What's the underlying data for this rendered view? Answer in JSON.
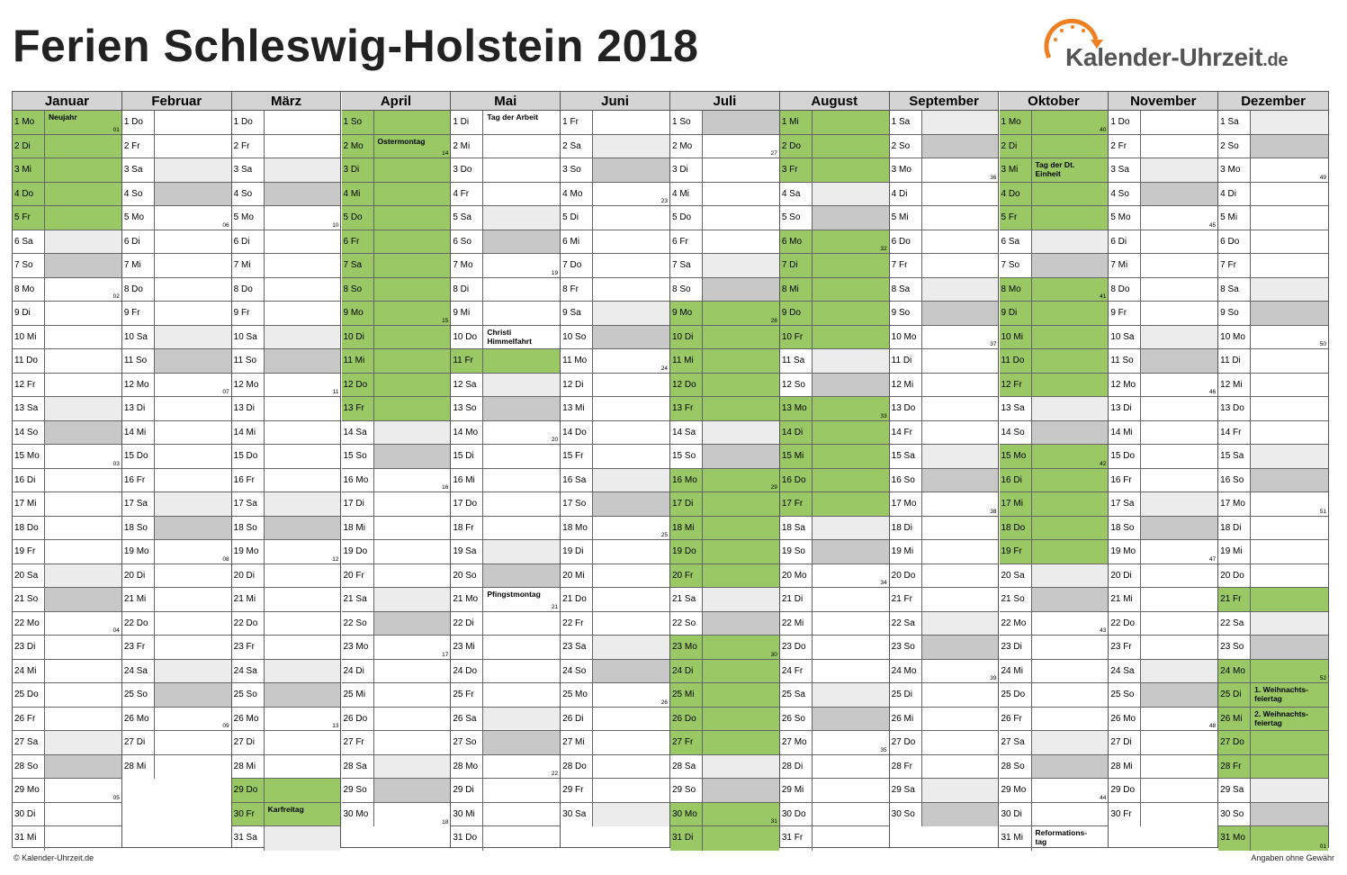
{
  "title": "Ferien Schleswig-Holstein 2018",
  "logo": {
    "text": "Kalender-Uhrzeit",
    "tld": ".de",
    "accent": "#ee7f22"
  },
  "colors": {
    "holiday": "#99c864",
    "saturday": "#ececec",
    "sunday": "#c8c8c8",
    "header": "#d4d4d4"
  },
  "footer": {
    "left": "© Kalender-Uhrzeit.de",
    "right": "Angaben ohne Gewähr"
  },
  "weekdays": [
    "So",
    "Mo",
    "Di",
    "Mi",
    "Do",
    "Fr",
    "Sa"
  ],
  "year_start_weekday": 1,
  "months": [
    {
      "name": "Januar",
      "days": 31,
      "holiday_days": [
        1,
        2,
        3,
        4,
        5
      ],
      "holiday_names": {
        "1": "Neujahr"
      },
      "week_numbers": {
        "1": "01",
        "8": "02",
        "15": "03",
        "22": "04",
        "29": "05"
      }
    },
    {
      "name": "Februar",
      "days": 28,
      "holiday_days": [],
      "holiday_names": {},
      "week_numbers": {
        "5": "06",
        "12": "07",
        "19": "08",
        "26": "09"
      }
    },
    {
      "name": "März",
      "days": 31,
      "holiday_days": [
        29,
        30
      ],
      "holiday_names": {
        "30": "Karfreitag"
      },
      "week_numbers": {
        "5": "10",
        "12": "11",
        "19": "12",
        "26": "13"
      }
    },
    {
      "name": "April",
      "days": 30,
      "holiday_days": [
        1,
        2,
        3,
        4,
        5,
        6,
        7,
        8,
        9,
        10,
        11,
        12,
        13
      ],
      "holiday_names": {
        "2": "Ostermontag"
      },
      "week_numbers": {
        "2": "14",
        "9": "15",
        "16": "16",
        "23": "17",
        "30": "18"
      }
    },
    {
      "name": "Mai",
      "days": 31,
      "holiday_days": [
        11
      ],
      "holiday_names": {
        "1": "Tag der Arbeit",
        "10": "Christi\nHimmelfahrt",
        "21": "Pfingstmontag"
      },
      "week_numbers": {
        "7": "19",
        "14": "20",
        "21": "21",
        "28": "22"
      }
    },
    {
      "name": "Juni",
      "days": 30,
      "holiday_days": [],
      "holiday_names": {},
      "week_numbers": {
        "4": "23",
        "11": "24",
        "18": "25",
        "25": "26"
      }
    },
    {
      "name": "Juli",
      "days": 31,
      "holiday_days": [
        9,
        10,
        11,
        12,
        13,
        16,
        17,
        18,
        19,
        20,
        23,
        24,
        25,
        26,
        27,
        30,
        31
      ],
      "holiday_names": {},
      "week_numbers": {
        "2": "27",
        "9": "28",
        "16": "29",
        "23": "30",
        "30": "31"
      }
    },
    {
      "name": "August",
      "days": 31,
      "holiday_days": [
        1,
        2,
        3,
        6,
        7,
        8,
        9,
        10,
        13,
        14,
        15,
        16,
        17
      ],
      "holiday_names": {},
      "week_numbers": {
        "6": "32",
        "13": "33",
        "20": "34",
        "27": "35"
      }
    },
    {
      "name": "September",
      "days": 30,
      "holiday_days": [],
      "holiday_names": {},
      "week_numbers": {
        "3": "36",
        "10": "37",
        "17": "38",
        "24": "39"
      }
    },
    {
      "name": "Oktober",
      "days": 31,
      "holiday_days": [
        1,
        2,
        3,
        4,
        5,
        8,
        9,
        10,
        11,
        12,
        15,
        16,
        17,
        18,
        19
      ],
      "holiday_names": {
        "3": "Tag der Dt.\nEinheit",
        "31": "Reformations-\ntag"
      },
      "week_numbers": {
        "1": "40",
        "8": "41",
        "15": "42",
        "22": "43",
        "29": "44"
      }
    },
    {
      "name": "November",
      "days": 30,
      "holiday_days": [],
      "holiday_names": {},
      "week_numbers": {
        "5": "45",
        "12": "46",
        "19": "47",
        "26": "48"
      }
    },
    {
      "name": "Dezember",
      "days": 31,
      "holiday_days": [
        21,
        24,
        25,
        26,
        27,
        28,
        31
      ],
      "holiday_names": {
        "25": "1. Weihnachts-\nfeiertag",
        "26": "2. Weihnachts-\nfeiertag"
      },
      "week_numbers": {
        "3": "49",
        "10": "50",
        "17": "51",
        "24": "52",
        "31": "01"
      }
    }
  ]
}
